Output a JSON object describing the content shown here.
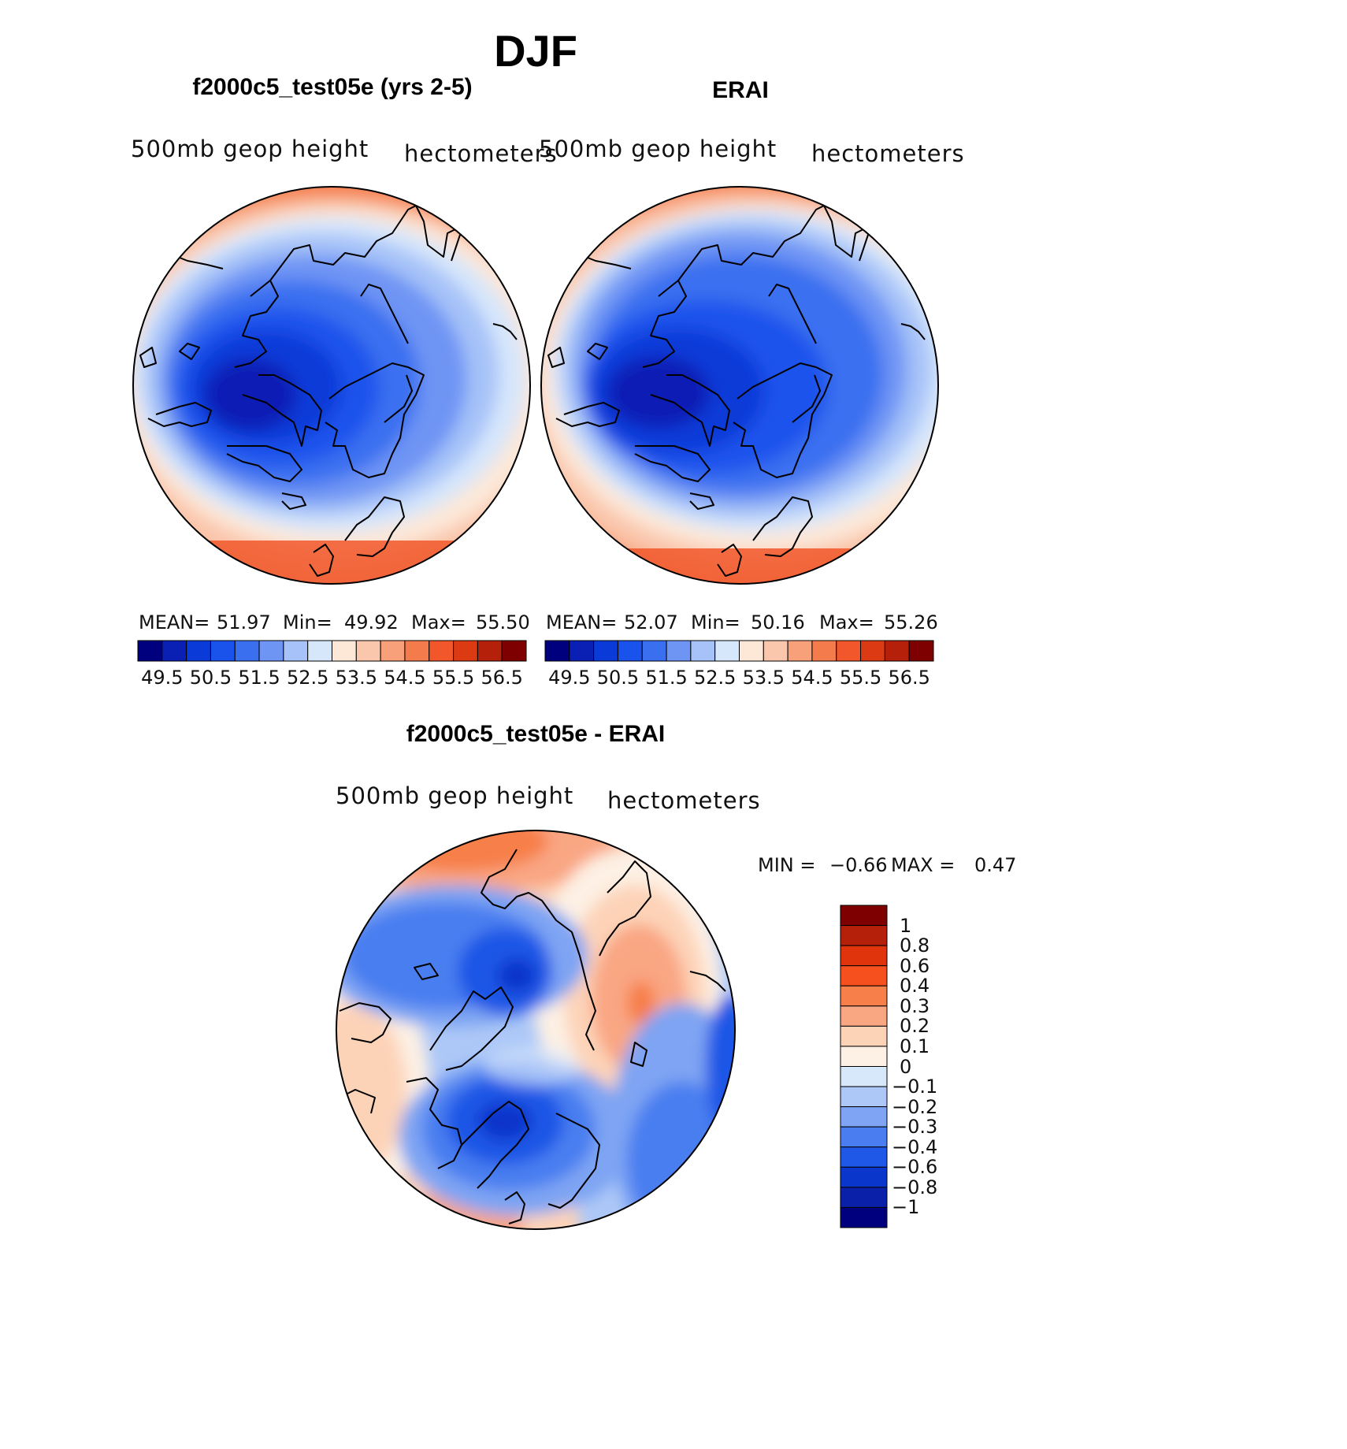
{
  "figure": {
    "season_title": "DJF",
    "panels": [
      {
        "title": "f2000c5_test05e (yrs 2-5)",
        "variable_label": "500mb geop height",
        "units_label": "hectometers",
        "stats": {
          "mean_label": "MEAN=",
          "mean": "51.97",
          "min_label": "Min=",
          "min": "49.92",
          "max_label": "Max=",
          "max": "55.50"
        }
      },
      {
        "title": "ERAI",
        "variable_label": "500mb geop height",
        "units_label": "hectometers",
        "stats": {
          "mean_label": "MEAN=",
          "mean": "52.07",
          "min_label": "Min=",
          "min": "50.16",
          "max_label": "Max=",
          "max": "55.26"
        }
      }
    ],
    "abs_colorbar": {
      "ticks": [
        "49.5",
        "50.5",
        "51.5",
        "52.5",
        "53.5",
        "54.5",
        "55.5",
        "56.5"
      ],
      "colors": [
        "#00007f",
        "#0a1fb4",
        "#0a3ad8",
        "#1a52ec",
        "#3a6ff0",
        "#6e94f4",
        "#a6c2f8",
        "#d6e6fb",
        "#fde8d8",
        "#fac6ac",
        "#f7a07a",
        "#f47b4b",
        "#f1572a",
        "#db3a13",
        "#b5200a",
        "#7f0000"
      ]
    },
    "diff_panel": {
      "title": "f2000c5_test05e - ERAI",
      "variable_label": "500mb geop height",
      "units_label": "hectometers",
      "min_label": "MIN =",
      "min": "−0.66",
      "max_label": "MAX =",
      "max": "0.47"
    },
    "diff_colorbar": {
      "labels": [
        "1",
        "0.8",
        "0.6",
        "0.4",
        "0.3",
        "0.2",
        "0.1",
        "0",
        "−0.1",
        "−0.2",
        "−0.3",
        "−0.4",
        "−0.6",
        "−0.8",
        "−1"
      ],
      "colors_top_to_bottom": [
        "#7f0000",
        "#b5200a",
        "#e0340d",
        "#f6501e",
        "#f77f4a",
        "#f9a683",
        "#fdd3b8",
        "#fdf0e4",
        "#d8e8fb",
        "#adc8f7",
        "#7ea4f3",
        "#4a7ef0",
        "#1f57e6",
        "#0a36cc",
        "#0a20a8",
        "#00007f"
      ]
    }
  }
}
